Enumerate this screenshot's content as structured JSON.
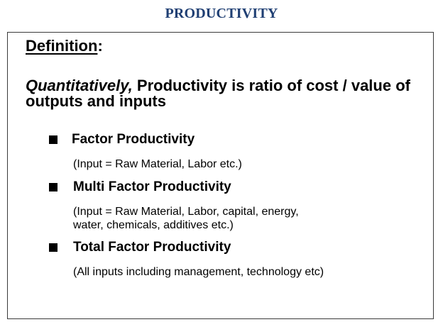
{
  "slide": {
    "title": "PRODUCTIVITY"
  },
  "definition": {
    "heading": "Definition",
    "colon": ":",
    "statement_italic": "Quantitatively,",
    "statement_rest": " Productivity is ratio of cost / value of outputs and inputs"
  },
  "bullets": [
    {
      "label": "Factor Productivity",
      "detail": "(Input = Raw Material, Labor etc.)"
    },
    {
      "label": "Multi Factor Productivity",
      "detail": "(Input = Raw Material, Labor, capital, energy,\nwater, chemicals, additives  etc.)"
    },
    {
      "label": "Total Factor Productivity",
      "detail": "(All inputs including management, technology etc)"
    }
  ],
  "colors": {
    "title": "#1f3f73",
    "text": "#000000",
    "border": "#3a3a3a"
  }
}
